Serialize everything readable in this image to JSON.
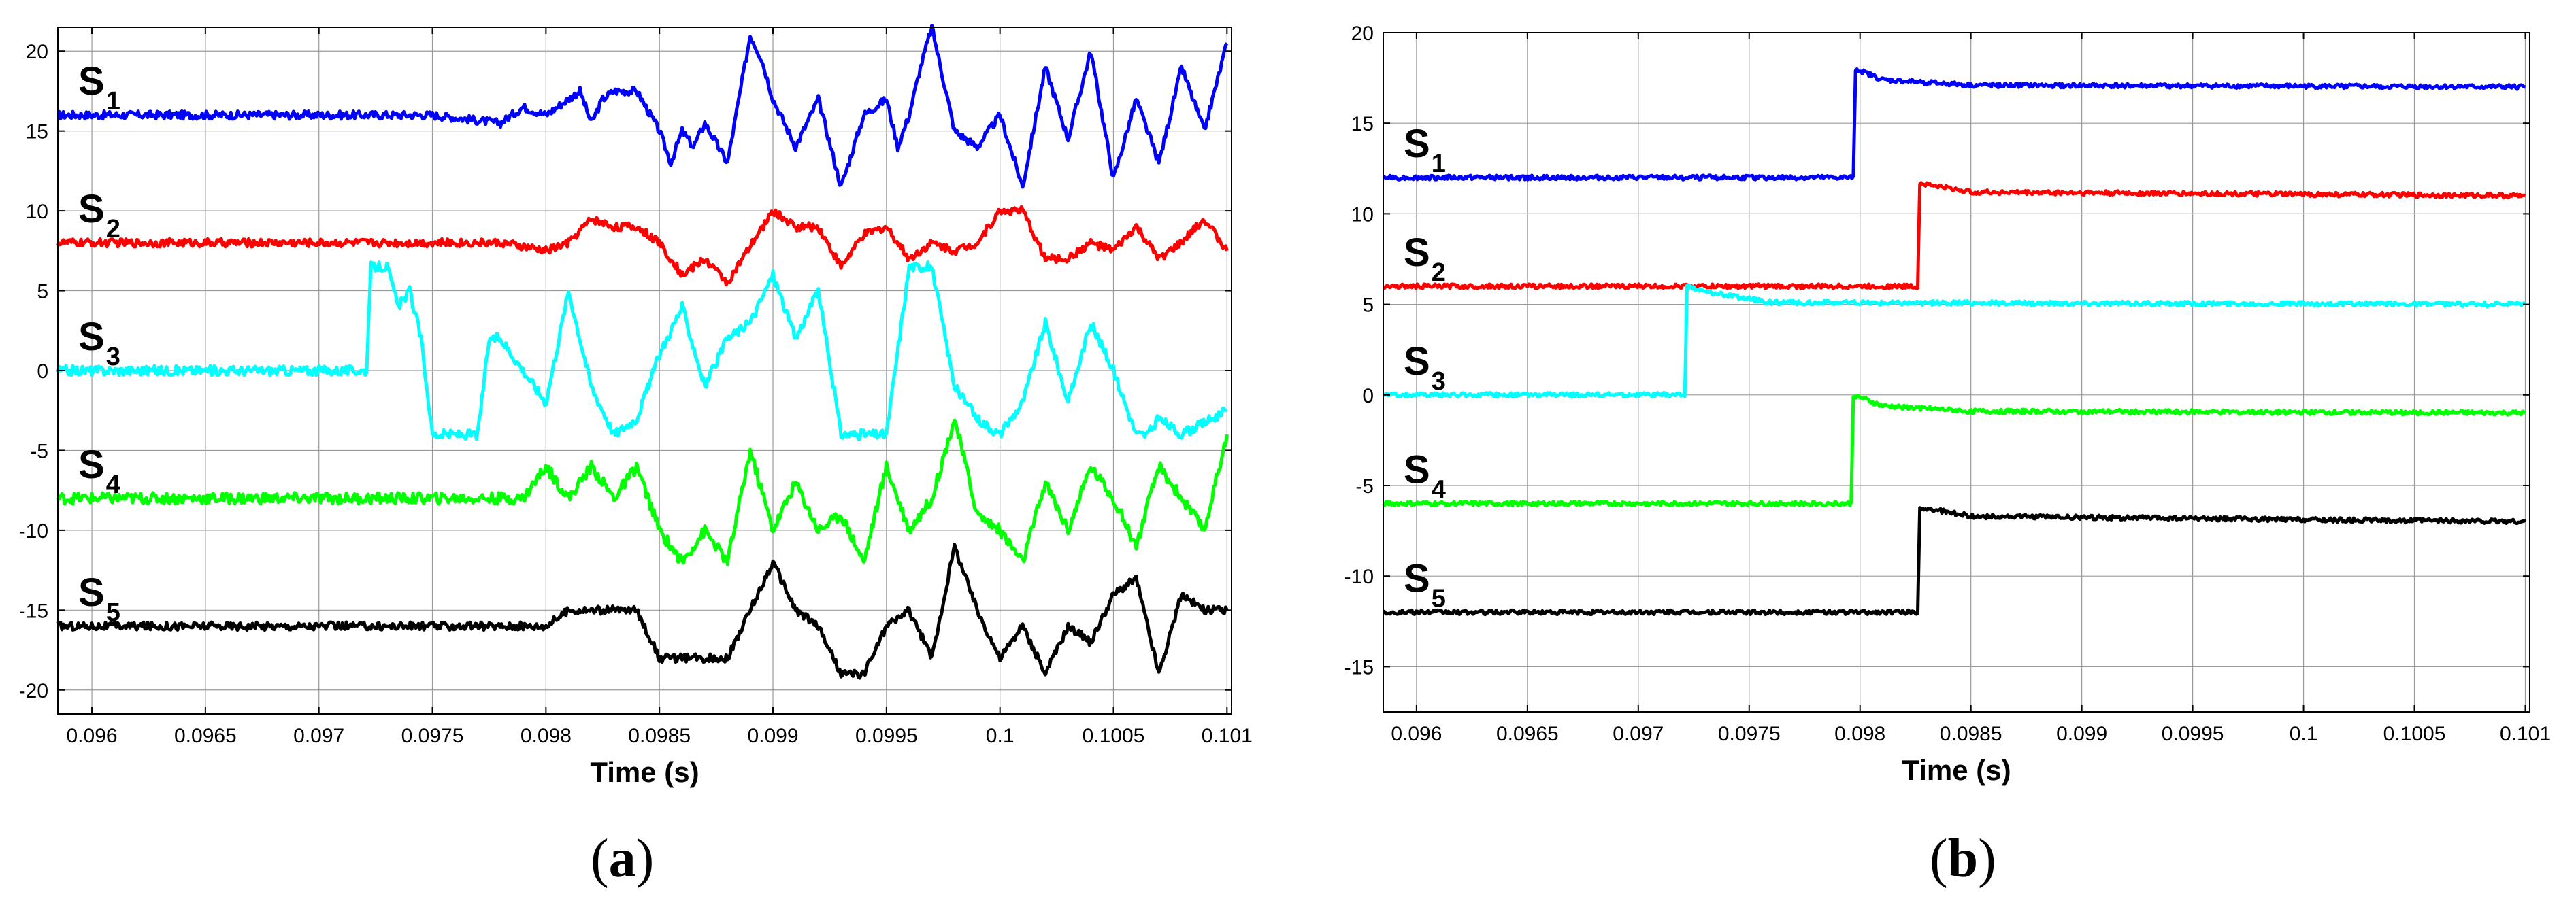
{
  "chart_data": [
    {
      "type": "line",
      "panel_label": "a",
      "xlabel": "Time (s)",
      "ylabel": "",
      "xlim": [
        0.09585,
        0.10102
      ],
      "ylim": [
        -21.5,
        21.5
      ],
      "x_ticks": [
        "0.096",
        "0.0965",
        "0.097",
        "0.0975",
        "0.098",
        "0.0985",
        "0.099",
        "0.0995",
        "0.1",
        "0.1005",
        "0.101"
      ],
      "x_tick_values": [
        0.096,
        0.0965,
        0.097,
        0.0975,
        0.098,
        0.0985,
        0.099,
        0.0995,
        0.1,
        0.1005,
        0.101
      ],
      "y_ticks": [
        20,
        15,
        10,
        5,
        0,
        -5,
        -10,
        -15,
        -20
      ],
      "grid": true,
      "series": [
        {
          "name": "S1",
          "color": "#0000ff",
          "noise": 0.25,
          "x": [
            0.09585,
            0.0975,
            0.0978,
            0.0979,
            0.098,
            0.09815,
            0.0982,
            0.09825,
            0.0983,
            0.0984,
            0.0985,
            0.09855,
            0.0986,
            0.09865,
            0.0987,
            0.0988,
            0.0989,
            0.09895,
            0.099,
            0.0991,
            0.0992,
            0.0993,
            0.0994,
            0.0995,
            0.09955,
            0.0996,
            0.09965,
            0.0997,
            0.0998,
            0.0999,
            0.1,
            0.1001,
            0.1002,
            0.1003,
            0.1004,
            0.1005,
            0.1006,
            0.1007,
            0.1008,
            0.1009,
            0.101
          ],
          "y": [
            16,
            16,
            15.5,
            16.5,
            16,
            17.5,
            15.5,
            17,
            17.5,
            17.5,
            15,
            13,
            15,
            14,
            15.5,
            13,
            21,
            19.5,
            17,
            14,
            17,
            11.5,
            16,
            17,
            14,
            16,
            19,
            21.5,
            15,
            14,
            16,
            11.5,
            19,
            14.5,
            20,
            12,
            17,
            13,
            19,
            15,
            20.5
          ]
        },
        {
          "name": "S2",
          "color": "#ff0000",
          "noise": 0.25,
          "x": [
            0.09585,
            0.0978,
            0.098,
            0.0981,
            0.0982,
            0.0983,
            0.0984,
            0.0985,
            0.0986,
            0.0987,
            0.0988,
            0.099,
            0.0991,
            0.0992,
            0.0993,
            0.0994,
            0.0995,
            0.0996,
            0.0997,
            0.0998,
            0.0999,
            0.1,
            0.1001,
            0.1002,
            0.1003,
            0.1004,
            0.1005,
            0.1006,
            0.1007,
            0.1008,
            0.1009,
            0.101
          ],
          "y": [
            8,
            8,
            7.5,
            8,
            9.5,
            9,
            9,
            8,
            6,
            7,
            5.5,
            10,
            9,
            9,
            6.5,
            8.5,
            9,
            7,
            8,
            7.5,
            8,
            10,
            10,
            7,
            7,
            8,
            7.5,
            9,
            7,
            8,
            9.5,
            7.5
          ]
        },
        {
          "name": "S3",
          "color": "#00ffff",
          "noise": 0.3,
          "x": [
            0.09585,
            0.09721,
            0.09723,
            0.0973,
            0.09735,
            0.0974,
            0.09745,
            0.0975,
            0.09755,
            0.0977,
            0.09775,
            0.0978,
            0.0979,
            0.098,
            0.0981,
            0.0982,
            0.0983,
            0.0984,
            0.0985,
            0.0986,
            0.0987,
            0.0988,
            0.0989,
            0.099,
            0.0991,
            0.0992,
            0.0993,
            0.0994,
            0.0995,
            0.0996,
            0.0997,
            0.0998,
            0.0999,
            0.1,
            0.1001,
            0.1002,
            0.1003,
            0.1004,
            0.1005,
            0.1006,
            0.10065,
            0.1007,
            0.1008,
            0.101
          ],
          "y": [
            0,
            0,
            6.5,
            6.5,
            4,
            5,
            2,
            -4,
            -4,
            -4,
            2,
            2,
            0,
            -2,
            5,
            -1,
            -4,
            -3,
            1,
            4,
            -1,
            2,
            3,
            6,
            2,
            5,
            -4,
            -4,
            -4,
            6.5,
            6.5,
            -1,
            -3,
            -4,
            -2,
            3,
            -2,
            3,
            0,
            -4,
            -4,
            -3,
            -4,
            -2.5
          ]
        },
        {
          "name": "S4",
          "color": "#00ff00",
          "noise": 0.35,
          "x": [
            0.09585,
            0.0979,
            0.098,
            0.0981,
            0.0982,
            0.0983,
            0.0984,
            0.0985,
            0.0986,
            0.0987,
            0.0988,
            0.0989,
            0.099,
            0.0991,
            0.0992,
            0.0993,
            0.0994,
            0.0995,
            0.0996,
            0.0997,
            0.0998,
            0.0999,
            0.1,
            0.1001,
            0.1002,
            0.1003,
            0.1004,
            0.1005,
            0.1006,
            0.1007,
            0.1008,
            0.1009,
            0.101
          ],
          "y": [
            -8,
            -8,
            -6,
            -8,
            -6,
            -8,
            -6,
            -10,
            -12,
            -10,
            -12,
            -5,
            -10,
            -7,
            -10,
            -9,
            -12,
            -6,
            -10,
            -8,
            -3,
            -9,
            -10,
            -12,
            -7,
            -10,
            -6,
            -8,
            -11,
            -6,
            -8,
            -10,
            -4
          ]
        },
        {
          "name": "S5",
          "color": "#000000",
          "noise": 0.25,
          "x": [
            0.09585,
            0.0979,
            0.098,
            0.0981,
            0.0982,
            0.0983,
            0.0984,
            0.0985,
            0.0986,
            0.0987,
            0.0988,
            0.0989,
            0.099,
            0.0991,
            0.0992,
            0.0993,
            0.0994,
            0.0995,
            0.0996,
            0.0997,
            0.0998,
            0.0999,
            0.1,
            0.1001,
            0.1002,
            0.1003,
            0.1004,
            0.1005,
            0.1006,
            0.1007,
            0.1008,
            0.1009,
            0.101
          ],
          "y": [
            -16,
            -16,
            -16,
            -15,
            -15,
            -15,
            -15,
            -18,
            -18,
            -18,
            -18,
            -15,
            -12,
            -15,
            -16,
            -19,
            -19,
            -16,
            -15,
            -18,
            -11,
            -15,
            -18,
            -16,
            -19,
            -16,
            -17,
            -14,
            -13,
            -19,
            -14,
            -15,
            -15
          ]
        }
      ]
    },
    {
      "type": "line",
      "panel_label": "b",
      "xlabel": "Time (s)",
      "ylabel": "",
      "xlim": [
        0.09585,
        0.10102
      ],
      "ylim": [
        -17.5,
        20
      ],
      "x_ticks": [
        "0.096",
        "0.0965",
        "0.097",
        "0.0975",
        "0.098",
        "0.0985",
        "0.099",
        "0.0995",
        "0.1",
        "0.1005",
        "0.101"
      ],
      "x_tick_values": [
        0.096,
        0.0965,
        0.097,
        0.0975,
        0.098,
        0.0985,
        0.099,
        0.0995,
        0.1,
        0.1005,
        0.101
      ],
      "y_ticks": [
        20,
        15,
        10,
        5,
        0,
        -5,
        -10,
        -15
      ],
      "grid": true,
      "series": [
        {
          "name": "S1",
          "color": "#0000ff",
          "noise": 0.12,
          "x": [
            0.09585,
            0.09797,
            0.09798,
            0.0981,
            0.0985,
            0.101
          ],
          "y": [
            12,
            12,
            18,
            17.4,
            17.1,
            17
          ]
        },
        {
          "name": "S2",
          "color": "#ff0000",
          "noise": 0.12,
          "x": [
            0.09585,
            0.09826,
            0.09827,
            0.0985,
            0.101
          ],
          "y": [
            6,
            6,
            11.7,
            11.2,
            11
          ]
        },
        {
          "name": "S3",
          "color": "#00ffff",
          "noise": 0.12,
          "x": [
            0.09585,
            0.09721,
            0.09722,
            0.0973,
            0.0976,
            0.101
          ],
          "y": [
            0,
            0,
            6,
            5.7,
            5.1,
            5
          ]
        },
        {
          "name": "S4",
          "color": "#00ff00",
          "noise": 0.12,
          "x": [
            0.09585,
            0.09796,
            0.09797,
            0.0981,
            0.0985,
            0.101
          ],
          "y": [
            -6,
            -6,
            0,
            -0.6,
            -0.9,
            -1
          ]
        },
        {
          "name": "S5",
          "color": "#000000",
          "noise": 0.12,
          "x": [
            0.09585,
            0.09826,
            0.09827,
            0.0985,
            0.101
          ],
          "y": [
            -12,
            -12,
            -6.2,
            -6.7,
            -7
          ]
        }
      ]
    }
  ]
}
